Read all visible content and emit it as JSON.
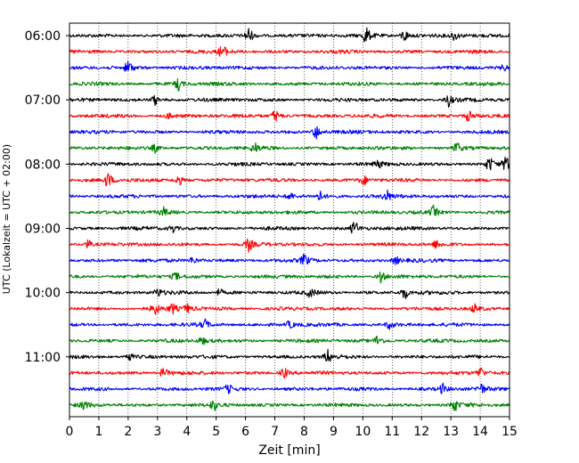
{
  "chart_data": {
    "type": "line",
    "title": "",
    "xlabel": "Zeit  [min]",
    "ylabel": "UTC (Lokalzeit = UTC + 02:00)",
    "xlim": [
      0,
      15
    ],
    "x_ticks": [
      0,
      1,
      2,
      3,
      4,
      5,
      6,
      7,
      8,
      9,
      10,
      11,
      12,
      13,
      14,
      15
    ],
    "grid": "vertical-dotted",
    "y_ticks": [
      {
        "label": "06:00",
        "trace": 0
      },
      {
        "label": "07:00",
        "trace": 4
      },
      {
        "label": "08:00",
        "trace": 8
      },
      {
        "label": "09:00",
        "trace": 12
      },
      {
        "label": "10:00",
        "trace": 16
      },
      {
        "label": "11:00",
        "trace": 20
      }
    ],
    "color_cycle": [
      "#000000",
      "#ff0000",
      "#0000ff",
      "#008000"
    ],
    "minutes_per_trace": 15,
    "traces": [
      {
        "start": "06:00",
        "events": [
          {
            "t": 6.1,
            "a": 1.0
          },
          {
            "t": 10.1,
            "a": 1.1
          },
          {
            "t": 11.4,
            "a": 0.8
          },
          {
            "t": 13.1,
            "a": 0.6
          }
        ]
      },
      {
        "start": "06:15",
        "events": [
          {
            "t": 5.2,
            "a": 0.9
          }
        ]
      },
      {
        "start": "06:30",
        "events": [
          {
            "t": 2.0,
            "a": 1.0
          },
          {
            "t": 14.8,
            "a": 0.3
          }
        ]
      },
      {
        "start": "06:45",
        "events": [
          {
            "t": 3.7,
            "a": 0.8
          }
        ]
      },
      {
        "start": "07:00",
        "events": [
          {
            "t": 2.9,
            "a": 0.6
          },
          {
            "t": 12.9,
            "a": 0.8
          }
        ]
      },
      {
        "start": "07:15",
        "events": [
          {
            "t": 3.4,
            "a": 0.4
          },
          {
            "t": 7.0,
            "a": 0.8
          },
          {
            "t": 13.6,
            "a": 0.7
          }
        ]
      },
      {
        "start": "07:30",
        "events": [
          {
            "t": 8.4,
            "a": 0.9
          }
        ]
      },
      {
        "start": "07:45",
        "events": [
          {
            "t": 2.9,
            "a": 0.5
          },
          {
            "t": 6.3,
            "a": 0.6
          },
          {
            "t": 13.2,
            "a": 0.7
          }
        ]
      },
      {
        "start": "08:00",
        "events": [
          {
            "t": 10.5,
            "a": 0.5
          },
          {
            "t": 14.3,
            "a": 0.9
          },
          {
            "t": 14.9,
            "a": 1.2
          }
        ]
      },
      {
        "start": "08:15",
        "events": [
          {
            "t": 1.3,
            "a": 1.0
          },
          {
            "t": 3.7,
            "a": 0.7
          },
          {
            "t": 10.0,
            "a": 0.6
          }
        ]
      },
      {
        "start": "08:30",
        "events": [
          {
            "t": 7.5,
            "a": 0.5
          },
          {
            "t": 8.5,
            "a": 0.6
          },
          {
            "t": 10.8,
            "a": 0.7
          }
        ]
      },
      {
        "start": "08:45",
        "events": [
          {
            "t": 3.2,
            "a": 0.5
          },
          {
            "t": 12.4,
            "a": 0.7
          }
        ]
      },
      {
        "start": "09:00",
        "events": [
          {
            "t": 3.5,
            "a": 0.5
          },
          {
            "t": 9.7,
            "a": 1.0
          }
        ]
      },
      {
        "start": "09:15",
        "events": [
          {
            "t": 0.6,
            "a": 0.6
          },
          {
            "t": 6.1,
            "a": 0.8
          },
          {
            "t": 12.5,
            "a": 0.5
          }
        ]
      },
      {
        "start": "09:30",
        "events": [
          {
            "t": 4.2,
            "a": 0.5
          },
          {
            "t": 8.0,
            "a": 0.8
          },
          {
            "t": 11.1,
            "a": 0.5
          }
        ]
      },
      {
        "start": "09:45",
        "events": [
          {
            "t": 3.6,
            "a": 0.5
          },
          {
            "t": 10.6,
            "a": 0.7
          }
        ]
      },
      {
        "start": "10:00",
        "events": [
          {
            "t": 3.0,
            "a": 0.5
          },
          {
            "t": 5.1,
            "a": 0.5
          },
          {
            "t": 8.2,
            "a": 0.5
          },
          {
            "t": 11.4,
            "a": 0.8
          }
        ]
      },
      {
        "start": "10:15",
        "events": [
          {
            "t": 2.9,
            "a": 0.7
          },
          {
            "t": 3.5,
            "a": 0.6
          },
          {
            "t": 4.0,
            "a": 0.5
          },
          {
            "t": 13.8,
            "a": 0.5
          }
        ]
      },
      {
        "start": "10:30",
        "events": [
          {
            "t": 4.6,
            "a": 0.6
          },
          {
            "t": 7.5,
            "a": 0.5
          },
          {
            "t": 10.9,
            "a": 0.5
          }
        ]
      },
      {
        "start": "10:45",
        "events": [
          {
            "t": 4.5,
            "a": 0.5
          },
          {
            "t": 10.5,
            "a": 0.8
          }
        ]
      },
      {
        "start": "11:00",
        "events": [
          {
            "t": 2.0,
            "a": 0.6
          },
          {
            "t": 8.8,
            "a": 0.8
          }
        ]
      },
      {
        "start": "11:15",
        "events": [
          {
            "t": 3.2,
            "a": 0.7
          },
          {
            "t": 7.3,
            "a": 0.7
          },
          {
            "t": 14.0,
            "a": 0.7
          }
        ]
      },
      {
        "start": "11:30",
        "events": [
          {
            "t": 5.4,
            "a": 0.5
          },
          {
            "t": 12.7,
            "a": 0.6
          },
          {
            "t": 14.0,
            "a": 0.7
          }
        ]
      },
      {
        "start": "11:45",
        "events": [
          {
            "t": 0.5,
            "a": 0.6
          },
          {
            "t": 4.9,
            "a": 0.6
          },
          {
            "t": 13.1,
            "a": 0.8
          }
        ]
      }
    ]
  }
}
